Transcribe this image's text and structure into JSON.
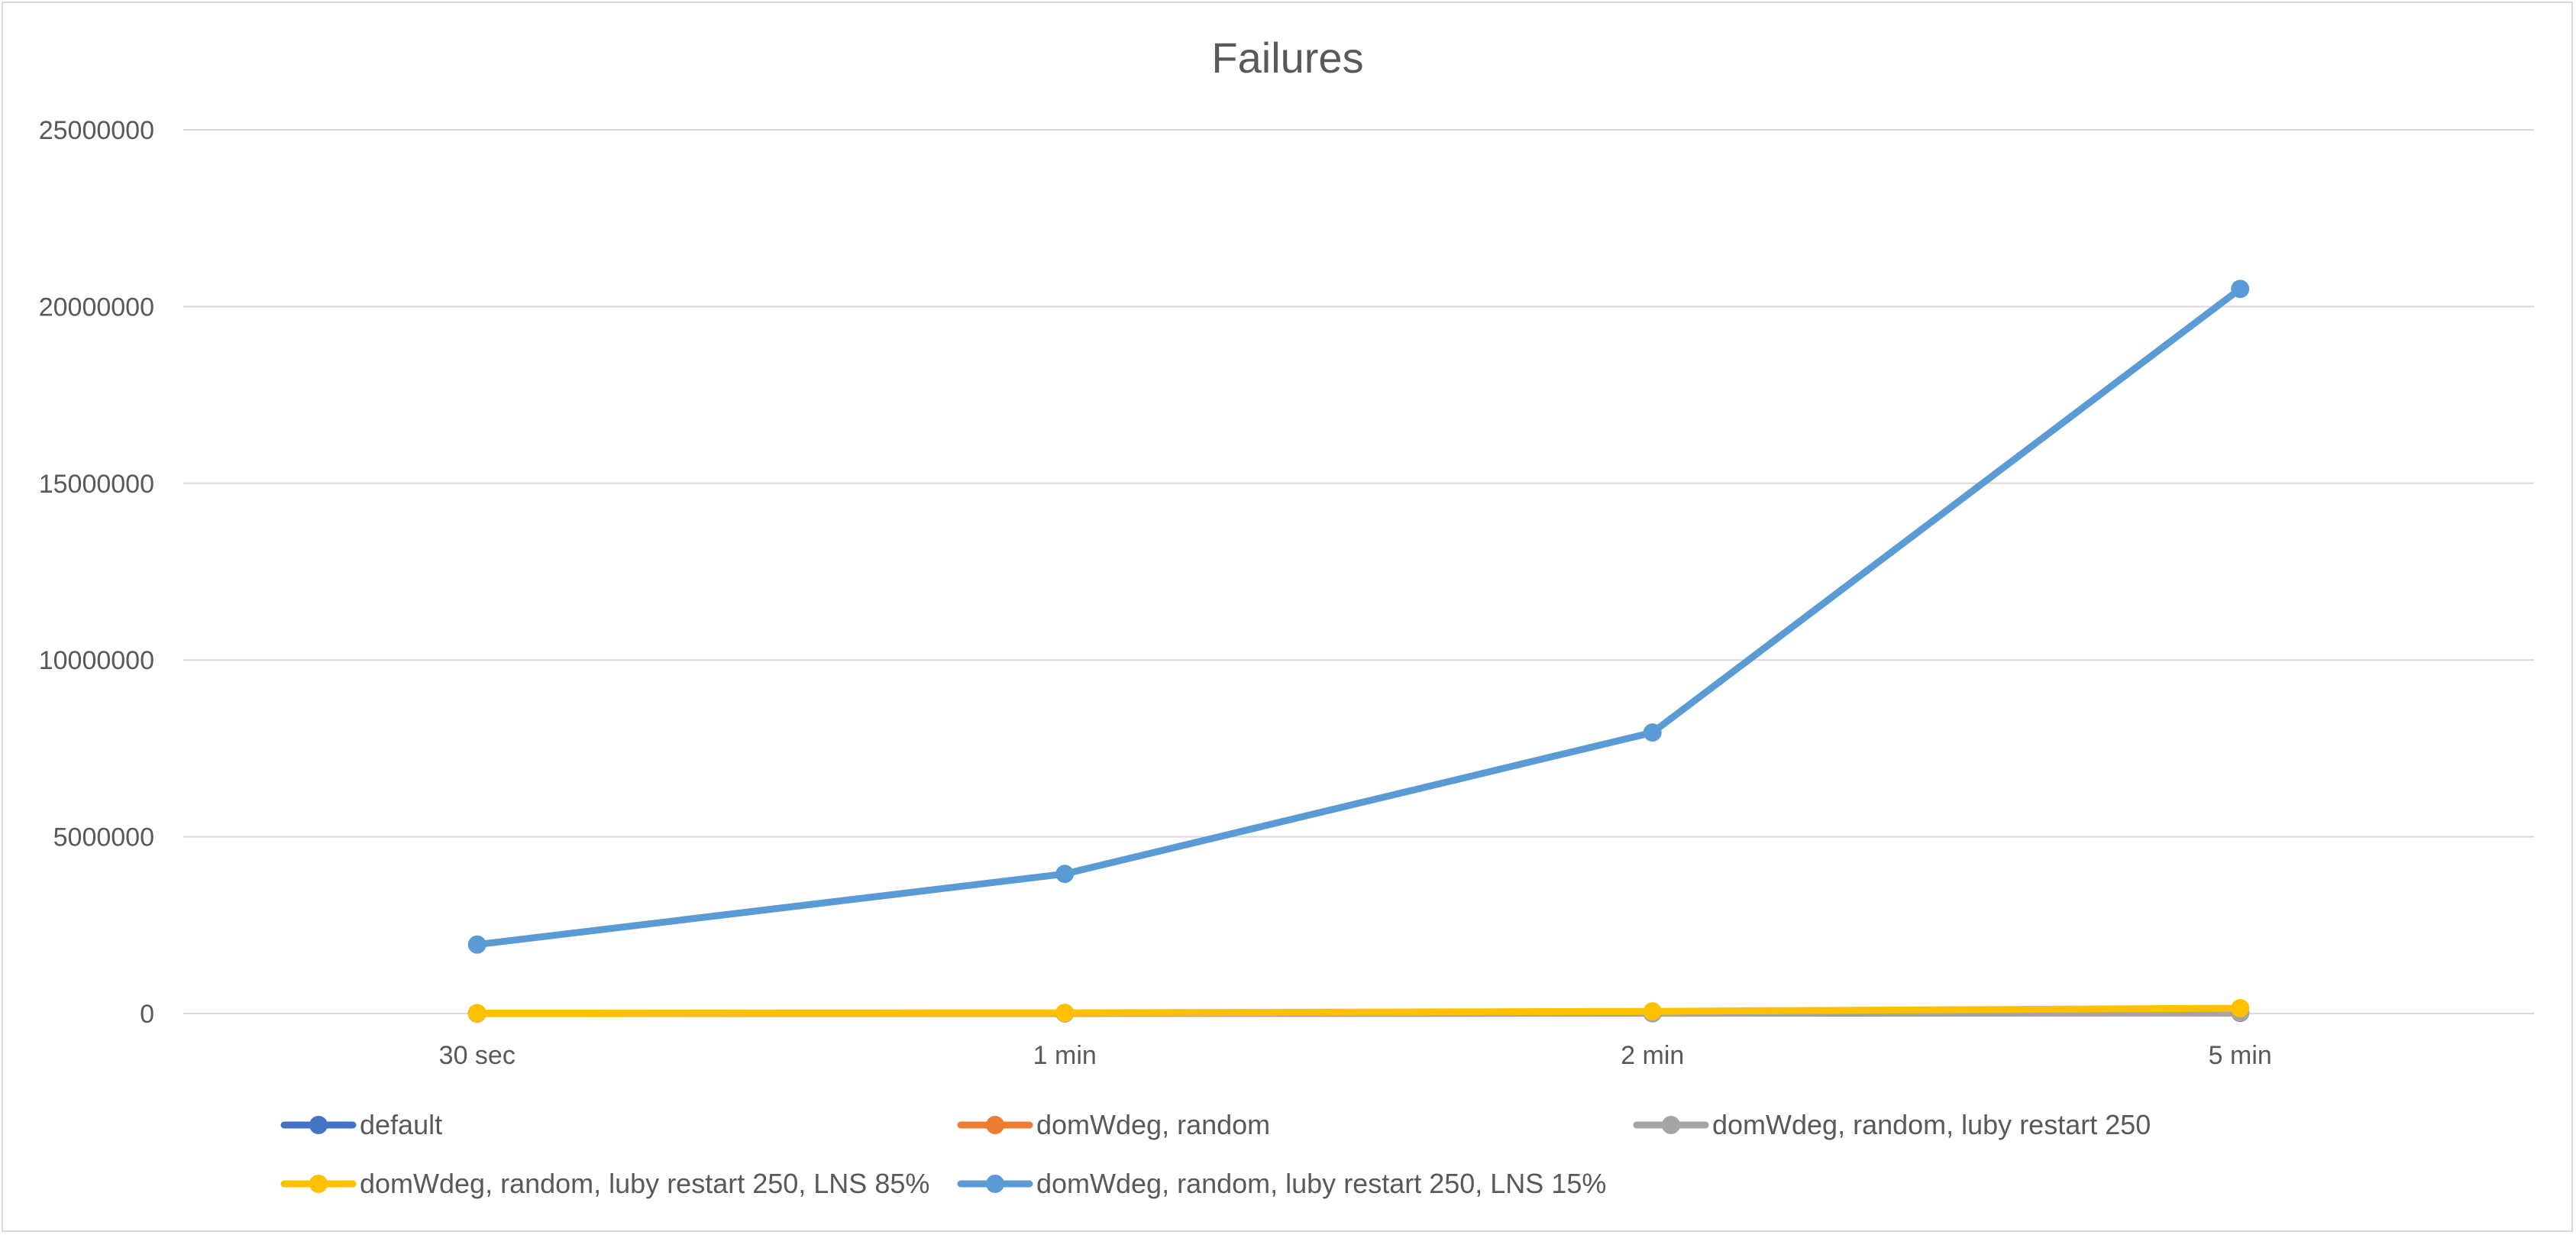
{
  "chart_data": {
    "type": "line",
    "title": "Failures",
    "xlabel": "",
    "ylabel": "",
    "categories": [
      "30 sec",
      "1 min",
      "2 min",
      "5 min"
    ],
    "ylim": [
      0,
      25000000
    ],
    "yticks": [
      0,
      5000000,
      10000000,
      15000000,
      20000000,
      25000000
    ],
    "grid": true,
    "legend_position": "bottom",
    "series": [
      {
        "name": "default",
        "color": "#4472c4",
        "values": [
          2000,
          4000,
          8000,
          20000
        ]
      },
      {
        "name": "domWdeg, random",
        "color": "#ed7d31",
        "values": [
          3000,
          6000,
          12000,
          30000
        ]
      },
      {
        "name": "domWdeg, random, luby restart 250",
        "color": "#a5a5a5",
        "values": [
          4000,
          8000,
          15000,
          40000
        ]
      },
      {
        "name": "domWdeg, random, luby restart 250, LNS 85%",
        "color": "#ffc000",
        "values": [
          10000,
          20000,
          60000,
          150000
        ]
      },
      {
        "name": "domWdeg, random, luby restart 250, LNS 15%",
        "color": "#5b9bd5",
        "values": [
          1950000,
          3950000,
          7950000,
          20500000
        ]
      }
    ]
  }
}
